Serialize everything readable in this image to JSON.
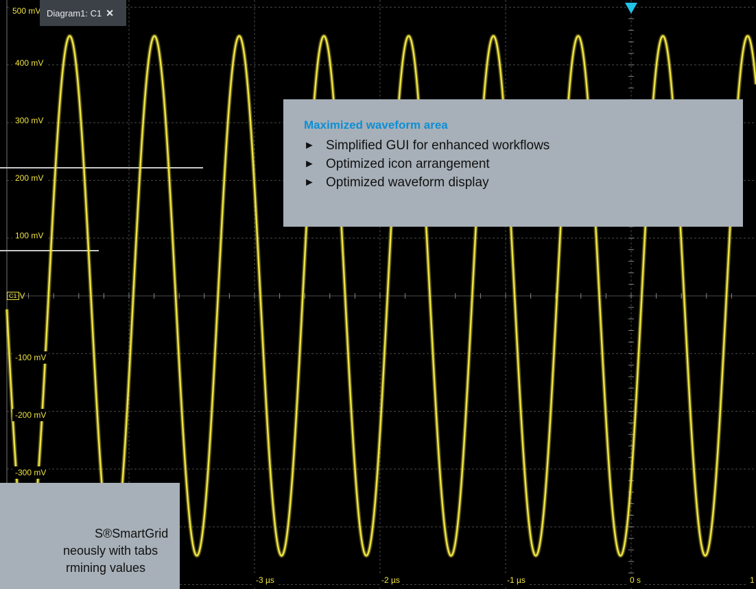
{
  "tab": {
    "label": "Diagram1: C1",
    "close_glyph": "✕"
  },
  "channel": {
    "badge": "C1",
    "marker": "V"
  },
  "colors": {
    "trace": "#f0e442",
    "grid": "#4a4a4a",
    "trigger": "#21c3e8",
    "panel": "#a7b0b8",
    "accent": "#0d8fd6"
  },
  "y_axis": {
    "ticks": [
      "500 mV",
      "400 mV",
      "300 mV",
      "200 mV",
      "100 mV",
      "-100 mV",
      "-200 mV",
      "-300 mV"
    ]
  },
  "x_axis": {
    "ticks": [
      "-3 µs",
      "-2 µs",
      "-1 µs",
      "0 s",
      "1"
    ]
  },
  "chart_data": {
    "type": "line",
    "signal": "sine",
    "period_us": 0.675,
    "amplitude_mV": 450,
    "ylim_mV": [
      -500,
      500
    ],
    "xlim_us": [
      -4.9,
      1.0
    ],
    "grid": true
  },
  "callouts": {
    "top": {
      "title": "Maximized waveform area",
      "items": [
        "Simplified GUI for enhanced workflows",
        "Optimized icon arrangement",
        "Optimized waveform display"
      ]
    },
    "bottom": {
      "lines": [
        "S®SmartGrid",
        "neously with tabs",
        "rmining values"
      ]
    }
  }
}
